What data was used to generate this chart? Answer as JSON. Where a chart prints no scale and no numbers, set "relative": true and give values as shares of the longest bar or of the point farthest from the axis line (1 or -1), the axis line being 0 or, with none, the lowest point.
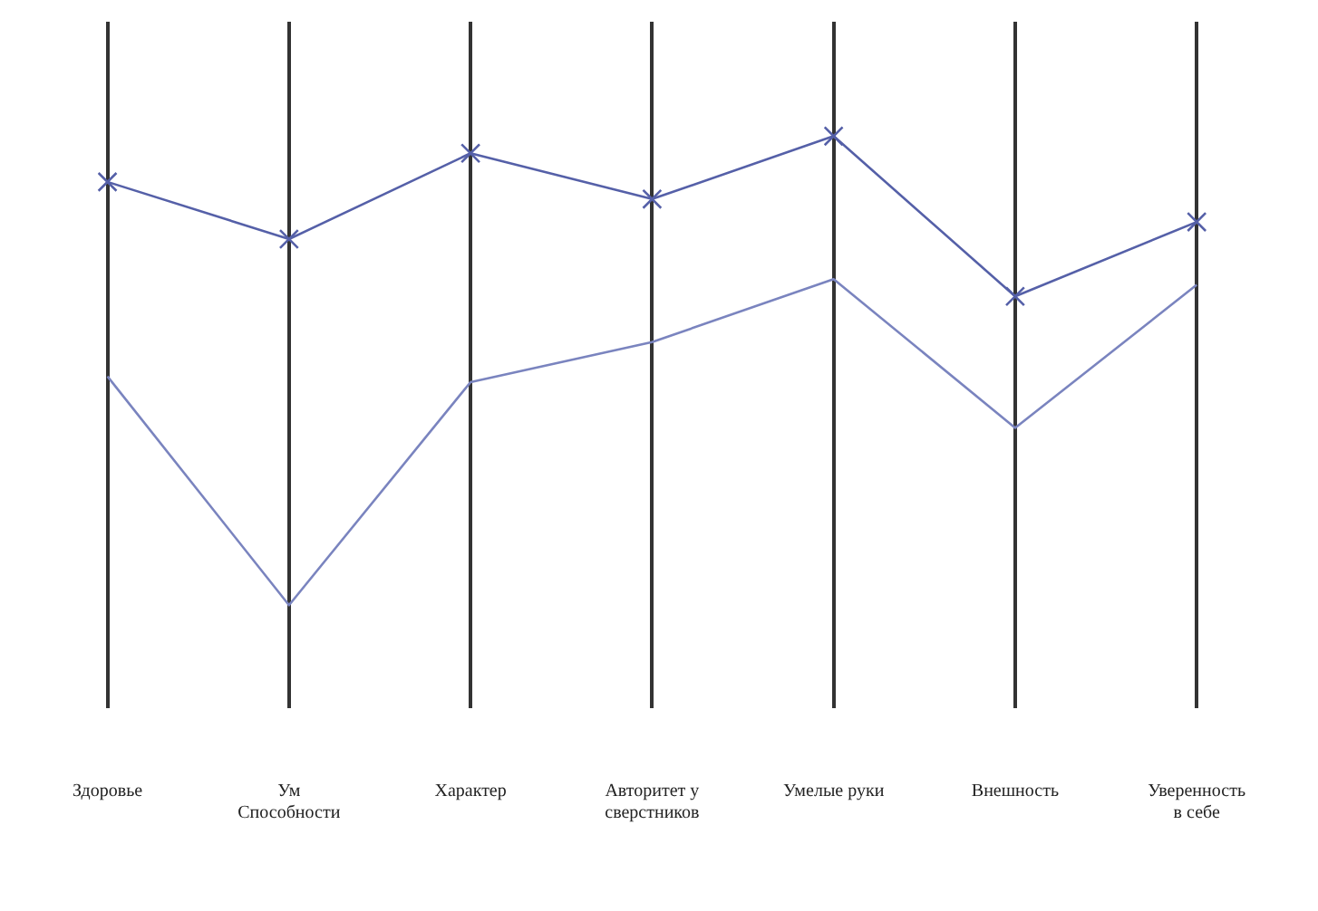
{
  "chart_data": {
    "type": "line",
    "relative": true,
    "grid": "x",
    "legend": false,
    "categories": [
      "Здоровье",
      "Ум\nСпособности",
      "Характер",
      "Авторитет у\nсверстников",
      "Умелые руки",
      "Внешность",
      "Уверенность\nв себе"
    ],
    "series": [
      {
        "color": "#5560a8",
        "marker": "cross",
        "values": [
          0.92,
          0.82,
          0.97,
          0.89,
          1,
          0.72,
          0.85
        ]
      },
      {
        "color": "#7a84bf",
        "marker": "none",
        "values": [
          0.58,
          0.18,
          0.57,
          0.64,
          0.75,
          0.49,
          0.74
        ]
      }
    ]
  }
}
